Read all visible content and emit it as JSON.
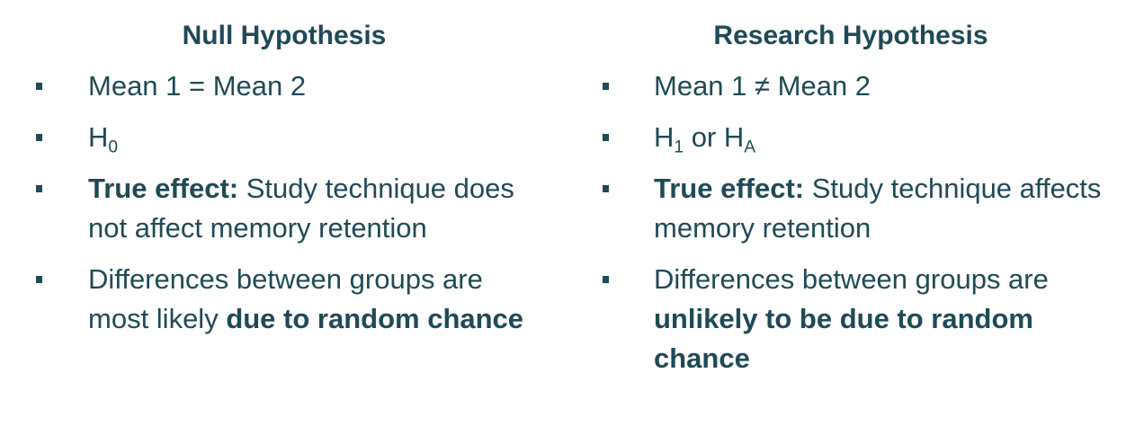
{
  "null_hypothesis": {
    "title": "Null Hypothesis",
    "item_1": "Mean 1 = Mean 2",
    "item_2_base": "H",
    "item_2_sub": "0",
    "item_3_bold": "True effect:",
    "item_3_text": " Study technique does not affect memory retention",
    "item_4_text": "Differences between groups are most likely ",
    "item_4_bold": "due to random chance"
  },
  "research_hypothesis": {
    "title": "Research Hypothesis",
    "item_1": "Mean 1 ≠ Mean 2",
    "item_2_base_a": "H",
    "item_2_sub_a": "1",
    "item_2_mid": " or H",
    "item_2_sub_b": "A",
    "item_3_bold": "True effect:",
    "item_3_text": " Study technique affects memory retention",
    "item_4_text": "Differences between groups are ",
    "item_4_bold": "unlikely to be due to random chance"
  },
  "colors": {
    "text": "#1f4a57",
    "background": "#ffffff"
  }
}
